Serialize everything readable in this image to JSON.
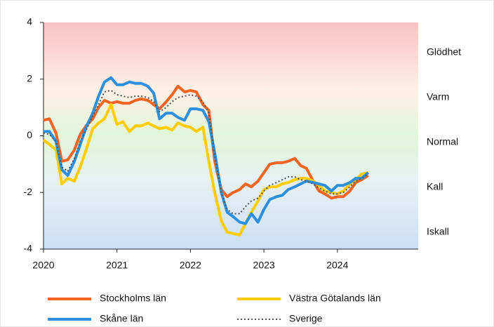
{
  "chart_data": {
    "type": "line",
    "x": [
      2020,
      2020.08,
      2020.17,
      2020.25,
      2020.33,
      2020.42,
      2020.5,
      2020.58,
      2020.67,
      2020.75,
      2020.83,
      2020.92,
      2021,
      2021.08,
      2021.17,
      2021.25,
      2021.33,
      2021.42,
      2021.5,
      2021.58,
      2021.67,
      2021.75,
      2021.83,
      2021.92,
      2022,
      2022.08,
      2022.17,
      2022.25,
      2022.33,
      2022.42,
      2022.5,
      2022.58,
      2022.67,
      2022.75,
      2022.83,
      2022.92,
      2023,
      2023.08,
      2023.17,
      2023.25,
      2023.33,
      2023.42,
      2023.5,
      2023.58,
      2023.67,
      2023.75,
      2023.83,
      2023.92,
      2024,
      2024.08,
      2024.17,
      2024.25,
      2024.33,
      2024.42
    ],
    "series": [
      {
        "name": "Stockholms län",
        "color": "#f26522",
        "dash": false,
        "values": [
          0.55,
          0.6,
          0.1,
          -0.9,
          -0.85,
          -0.5,
          0.05,
          0.35,
          0.6,
          1.0,
          1.25,
          1.15,
          1.2,
          1.15,
          1.15,
          1.25,
          1.3,
          1.25,
          1.1,
          0.95,
          1.2,
          1.45,
          1.75,
          1.55,
          1.6,
          1.55,
          1.1,
          0.9,
          -0.9,
          -1.9,
          -2.15,
          -2.0,
          -1.9,
          -1.7,
          -1.8,
          -1.6,
          -1.3,
          -1.0,
          -0.95,
          -0.95,
          -0.9,
          -0.8,
          -1.05,
          -1.15,
          -1.6,
          -1.95,
          -2.05,
          -2.2,
          -2.15,
          -2.15,
          -1.95,
          -1.65,
          -1.55,
          -1.4
        ]
      },
      {
        "name": "Västra Götalands län",
        "color": "#ffcc00",
        "dash": false,
        "values": [
          -0.15,
          -0.3,
          -0.5,
          -1.7,
          -1.5,
          -1.6,
          -1.1,
          -0.5,
          0.25,
          0.45,
          0.6,
          1.1,
          0.4,
          0.5,
          0.15,
          0.35,
          0.35,
          0.45,
          0.35,
          0.25,
          0.3,
          0.2,
          0.45,
          0.35,
          0.3,
          0.15,
          0.3,
          -0.9,
          -2.0,
          -3.0,
          -3.4,
          -3.45,
          -3.5,
          -3.1,
          -2.7,
          -2.3,
          -1.9,
          -1.8,
          -1.8,
          -1.7,
          -1.65,
          -1.55,
          -1.5,
          -1.5,
          -1.6,
          -1.75,
          -1.95,
          -2.0,
          -2.05,
          -1.95,
          -1.7,
          -1.55,
          -1.35,
          -1.3
        ]
      },
      {
        "name": "Skåne län",
        "color": "#2f8fdf",
        "dash": false,
        "values": [
          0.15,
          0.15,
          -0.2,
          -1.2,
          -1.4,
          -0.9,
          -0.3,
          0.3,
          0.8,
          1.4,
          1.9,
          2.05,
          1.8,
          1.8,
          1.9,
          1.85,
          1.85,
          1.75,
          1.5,
          0.6,
          0.8,
          0.8,
          0.65,
          0.55,
          0.95,
          0.95,
          0.9,
          0.5,
          -0.6,
          -2.0,
          -2.7,
          -2.85,
          -3.05,
          -3.1,
          -2.75,
          -3.05,
          -2.6,
          -2.25,
          -2.15,
          -2.1,
          -1.9,
          -1.8,
          -1.7,
          -1.6,
          -1.65,
          -1.7,
          -1.75,
          -1.95,
          -1.75,
          -1.75,
          -1.65,
          -1.5,
          -1.5,
          -1.3
        ]
      },
      {
        "name": "Sverige",
        "color": "#555555",
        "dash": true,
        "values": [
          0.1,
          0.05,
          -0.2,
          -1.1,
          -1.25,
          -0.8,
          -0.2,
          0.2,
          0.7,
          1.1,
          1.55,
          1.6,
          1.45,
          1.4,
          1.35,
          1.4,
          1.4,
          1.35,
          1.2,
          0.85,
          1.0,
          1.2,
          1.35,
          1.4,
          1.45,
          1.4,
          1.2,
          0.8,
          -0.7,
          -2.0,
          -2.6,
          -2.75,
          -2.75,
          -2.5,
          -2.3,
          -2.2,
          -1.95,
          -1.75,
          -1.65,
          -1.55,
          -1.45,
          -1.45,
          -1.55,
          -1.6,
          -1.7,
          -1.85,
          -1.95,
          -2.05,
          -2.05,
          -2.0,
          -1.8,
          -1.6,
          -1.5,
          -1.35
        ]
      }
    ],
    "xlim": [
      2020,
      2025.1
    ],
    "xticks": [
      2020,
      2021,
      2022,
      2023,
      2024
    ],
    "ylim": [
      -4,
      4
    ],
    "yticks": [
      4,
      2,
      0,
      -2,
      -4
    ],
    "zone_labels": [
      "Glödhet",
      "Varm",
      "Normal",
      "Kall",
      "Iskall"
    ],
    "legend": "bottom"
  }
}
